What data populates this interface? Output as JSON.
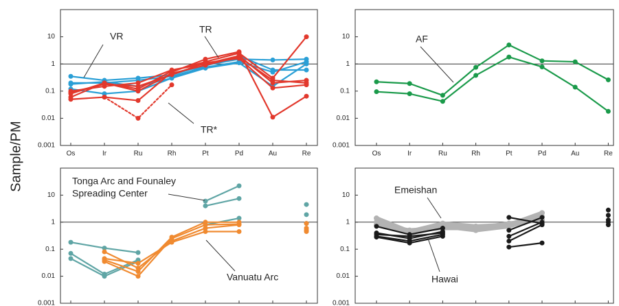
{
  "y_label": "Sample/PM",
  "chart_data": [
    {
      "type": "line",
      "log_y": true,
      "ylim": [
        0.001,
        100
      ],
      "yticks": [
        0.001,
        0.01,
        0.1,
        1,
        10
      ],
      "hline": 1,
      "categories": [
        "Os",
        "Ir",
        "Ru",
        "Rh",
        "Pt",
        "Pd",
        "Au",
        "Re"
      ],
      "series": [
        {
          "color": "#2a9fd6",
          "values": [
            0.35,
            0.25,
            0.3,
            0.4,
            0.9,
            1.5,
            1.4,
            1.5
          ]
        },
        {
          "color": "#2a9fd6",
          "values": [
            0.2,
            0.2,
            0.25,
            0.35,
            0.75,
            1.2,
            0.5,
            1.2
          ]
        },
        {
          "color": "#2a9fd6",
          "values": [
            0.12,
            0.08,
            0.1,
            0.3,
            0.85,
            2,
            0.6,
            0.6
          ]
        },
        {
          "color": "#2a9fd6",
          "values": [
            0.18,
            0.22,
            0.15,
            0.3,
            0.7,
            1.1,
            0.15,
            1.0
          ]
        },
        {
          "color": "#e2382c",
          "values": [
            0.05,
            0.06,
            0.045,
            0.5,
            1.5,
            2.8,
            0.011,
            0.065
          ]
        },
        {
          "color": "#e2382c",
          "values": [
            0.08,
            0.2,
            0.12,
            0.55,
            1.2,
            2.5,
            0.3,
            10
          ]
        },
        {
          "color": "#e2382c",
          "values": [
            0.1,
            0.15,
            0.2,
            0.6,
            1,
            2,
            0.2,
            0.25
          ]
        },
        {
          "color": "#e2382c",
          "values": [
            0.09,
            0.18,
            0.15,
            0.4,
            1.1,
            1.6,
            0.13,
            0.17
          ]
        },
        {
          "color": "#e2382c",
          "values": [
            0.06,
            0.2,
            0.1,
            0.45,
            0.9,
            1.8,
            0.25,
            0.2
          ]
        },
        {
          "color": "#e2382c",
          "dashed": true,
          "values": [
            null,
            0.06,
            0.01,
            0.17,
            null,
            null,
            null,
            null
          ]
        }
      ],
      "annotations": [
        {
          "text": "VR"
        },
        {
          "text": "TR"
        },
        {
          "text": "TR*"
        }
      ]
    },
    {
      "type": "line",
      "log_y": true,
      "ylim": [
        0.001,
        100
      ],
      "yticks": [
        0.001,
        0.01,
        0.1,
        1,
        10
      ],
      "hline": 1,
      "categories": [
        "Os",
        "Ir",
        "Ru",
        "Rh",
        "Pt",
        "Pd",
        "Au",
        "Re"
      ],
      "series": [
        {
          "color": "#1a9a4a",
          "values": [
            0.22,
            0.19,
            0.07,
            0.75,
            5,
            1.3,
            1.2,
            0.26
          ]
        },
        {
          "color": "#1a9a4a",
          "values": [
            0.095,
            0.08,
            0.042,
            0.38,
            1.8,
            0.78,
            0.14,
            0.018
          ]
        }
      ],
      "annotations": [
        {
          "text": "AF"
        }
      ]
    },
    {
      "type": "line",
      "log_y": true,
      "ylim": [
        0.001,
        100
      ],
      "yticks": [
        0.001,
        0.01,
        0.1,
        1,
        10
      ],
      "hline": 1,
      "categories": [
        null,
        null,
        null,
        null,
        null,
        null,
        null,
        null
      ],
      "series": [
        {
          "color": "#5fa5a5",
          "values": [
            0.18,
            0.11,
            0.075,
            null,
            6,
            22,
            null,
            4.5
          ]
        },
        {
          "color": "#5fa5a5",
          "values": [
            0.07,
            0.012,
            0.04,
            null,
            4,
            7.5,
            null,
            1.9
          ]
        },
        {
          "color": "#5fa5a5",
          "values": [
            0.045,
            0.01,
            0.035,
            null,
            0.8,
            1.4,
            null,
            0.9
          ]
        },
        {
          "color": "#f08a30",
          "values": [
            null,
            0.04,
            0.015,
            0.28,
            1.0,
            1.0,
            null,
            0.9
          ]
        },
        {
          "color": "#f08a30",
          "values": [
            null,
            0.035,
            0.01,
            0.25,
            0.8,
            0.85,
            null,
            0.6
          ]
        },
        {
          "color": "#f08a30",
          "values": [
            null,
            0.08,
            0.02,
            0.2,
            0.6,
            0.8,
            null,
            0.5
          ]
        },
        {
          "color": "#f08a30",
          "values": [
            null,
            0.045,
            0.03,
            0.18,
            0.45,
            0.45,
            null,
            0.45
          ]
        }
      ],
      "annotations": [
        {
          "text": "Tonga Arc and Founaley"
        },
        {
          "text": "Spreading Center"
        },
        {
          "text": "Vanuatu Arc"
        }
      ]
    },
    {
      "type": "line",
      "log_y": true,
      "ylim": [
        0.001,
        100
      ],
      "yticks": [
        0.001,
        0.01,
        0.1,
        1,
        10
      ],
      "hline": 1,
      "categories": [
        null,
        null,
        null,
        null,
        null,
        null,
        null,
        null
      ],
      "series": [
        {
          "color": "#b3b3b3",
          "line_width": 6,
          "values": [
            1.4,
            0.45,
            0.9,
            0.7,
            0.8,
            2.2,
            null,
            null
          ]
        },
        {
          "color": "#b3b3b3",
          "line_width": 6,
          "values": [
            1.0,
            0.4,
            0.7,
            0.5,
            0.7,
            1.6,
            null,
            null
          ]
        },
        {
          "color": "#b3b3b3",
          "line_width": 6,
          "values": [
            0.8,
            0.5,
            0.6,
            0.6,
            0.9,
            1.2,
            null,
            null
          ]
        },
        {
          "color": "#1a1a1a",
          "values": [
            0.7,
            0.35,
            0.6,
            null,
            1.5,
            0.9,
            null,
            2.8
          ]
        },
        {
          "color": "#1a1a1a",
          "values": [
            0.4,
            0.25,
            0.45,
            null,
            0.3,
            1.0,
            null,
            1.8
          ]
        },
        {
          "color": "#1a1a1a",
          "values": [
            0.3,
            0.2,
            0.35,
            null,
            0.12,
            0.17,
            null,
            1.0
          ]
        },
        {
          "color": "#1a1a1a",
          "values": [
            0.35,
            0.3,
            0.4,
            null,
            0.5,
            1.5,
            null,
            0.8
          ]
        },
        {
          "color": "#1a1a1a",
          "values": [
            0.28,
            0.17,
            0.3,
            null,
            0.2,
            0.8,
            null,
            1.2
          ]
        }
      ],
      "annotations": [
        {
          "text": "Emeishan"
        },
        {
          "text": "Hawai"
        }
      ]
    }
  ]
}
